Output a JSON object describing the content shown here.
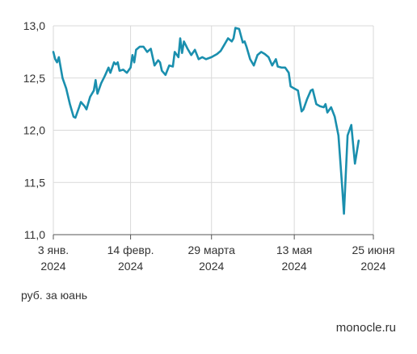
{
  "chart_data": {
    "type": "line",
    "ylim": [
      11.0,
      13.0
    ],
    "yticks": [
      {
        "value": 11.0,
        "label": "11,0"
      },
      {
        "value": 11.5,
        "label": "11,5"
      },
      {
        "value": 12.0,
        "label": "12,0"
      },
      {
        "value": 12.5,
        "label": "12,5"
      },
      {
        "value": 13.0,
        "label": "13,0"
      }
    ],
    "xlim": [
      "2024-01-03",
      "2024-06-25"
    ],
    "xticks": [
      {
        "date": "2024-01-03",
        "label": "3 янв.",
        "year": "2024"
      },
      {
        "date": "2024-02-14",
        "label": "14 февр.",
        "year": "2024"
      },
      {
        "date": "2024-03-29",
        "label": "29 марта",
        "year": "2024"
      },
      {
        "date": "2024-05-13",
        "label": "13 мая",
        "year": "2024"
      },
      {
        "date": "2024-06-25",
        "label": "25 июня",
        "year": "2024"
      }
    ],
    "grid": true,
    "line_color": "#1a8fae",
    "series": [
      {
        "points": [
          [
            "2024-01-03",
            12.75
          ],
          [
            "2024-01-04",
            12.68
          ],
          [
            "2024-01-05",
            12.65
          ],
          [
            "2024-01-06",
            12.7
          ],
          [
            "2024-01-08",
            12.5
          ],
          [
            "2024-01-10",
            12.4
          ],
          [
            "2024-01-12",
            12.25
          ],
          [
            "2024-01-14",
            12.13
          ],
          [
            "2024-01-15",
            12.12
          ],
          [
            "2024-01-17",
            12.22
          ],
          [
            "2024-01-18",
            12.27
          ],
          [
            "2024-01-20",
            12.23
          ],
          [
            "2024-01-21",
            12.2
          ],
          [
            "2024-01-23",
            12.32
          ],
          [
            "2024-01-25",
            12.38
          ],
          [
            "2024-01-26",
            12.48
          ],
          [
            "2024-01-27",
            12.35
          ],
          [
            "2024-01-29",
            12.45
          ],
          [
            "2024-01-31",
            12.52
          ],
          [
            "2024-02-02",
            12.6
          ],
          [
            "2024-02-03",
            12.55
          ],
          [
            "2024-02-05",
            12.65
          ],
          [
            "2024-02-06",
            12.63
          ],
          [
            "2024-02-07",
            12.65
          ],
          [
            "2024-02-08",
            12.57
          ],
          [
            "2024-02-10",
            12.58
          ],
          [
            "2024-02-12",
            12.55
          ],
          [
            "2024-02-14",
            12.6
          ],
          [
            "2024-02-15",
            12.72
          ],
          [
            "2024-02-16",
            12.65
          ],
          [
            "2024-02-17",
            12.77
          ],
          [
            "2024-02-19",
            12.8
          ],
          [
            "2024-02-21",
            12.8
          ],
          [
            "2024-02-23",
            12.75
          ],
          [
            "2024-02-25",
            12.78
          ],
          [
            "2024-02-27",
            12.62
          ],
          [
            "2024-02-29",
            12.67
          ],
          [
            "2024-03-01",
            12.65
          ],
          [
            "2024-03-02",
            12.57
          ],
          [
            "2024-03-04",
            12.53
          ],
          [
            "2024-03-06",
            12.62
          ],
          [
            "2024-03-08",
            12.61
          ],
          [
            "2024-03-09",
            12.75
          ],
          [
            "2024-03-11",
            12.7
          ],
          [
            "2024-03-12",
            12.88
          ],
          [
            "2024-03-13",
            12.74
          ],
          [
            "2024-03-14",
            12.85
          ],
          [
            "2024-03-16",
            12.78
          ],
          [
            "2024-03-18",
            12.72
          ],
          [
            "2024-03-20",
            12.77
          ],
          [
            "2024-03-22",
            12.68
          ],
          [
            "2024-03-24",
            12.7
          ],
          [
            "2024-03-26",
            12.68
          ],
          [
            "2024-03-29",
            12.7
          ],
          [
            "2024-04-01",
            12.73
          ],
          [
            "2024-04-03",
            12.76
          ],
          [
            "2024-04-05",
            12.82
          ],
          [
            "2024-04-07",
            12.88
          ],
          [
            "2024-04-09",
            12.85
          ],
          [
            "2024-04-10",
            12.88
          ],
          [
            "2024-04-11",
            12.98
          ],
          [
            "2024-04-13",
            12.97
          ],
          [
            "2024-04-15",
            12.84
          ],
          [
            "2024-04-16",
            12.85
          ],
          [
            "2024-04-17",
            12.8
          ],
          [
            "2024-04-19",
            12.68
          ],
          [
            "2024-04-21",
            12.62
          ],
          [
            "2024-04-23",
            12.72
          ],
          [
            "2024-04-25",
            12.75
          ],
          [
            "2024-04-27",
            12.73
          ],
          [
            "2024-04-29",
            12.7
          ],
          [
            "2024-05-01",
            12.62
          ],
          [
            "2024-05-03",
            12.68
          ],
          [
            "2024-05-04",
            12.61
          ],
          [
            "2024-05-06",
            12.6
          ],
          [
            "2024-05-08",
            12.6
          ],
          [
            "2024-05-10",
            12.55
          ],
          [
            "2024-05-11",
            12.42
          ],
          [
            "2024-05-13",
            12.4
          ],
          [
            "2024-05-15",
            12.38
          ],
          [
            "2024-05-17",
            12.18
          ],
          [
            "2024-05-18",
            12.2
          ],
          [
            "2024-05-20",
            12.3
          ],
          [
            "2024-05-22",
            12.38
          ],
          [
            "2024-05-23",
            12.39
          ],
          [
            "2024-05-25",
            12.25
          ],
          [
            "2024-05-27",
            12.23
          ],
          [
            "2024-05-29",
            12.22
          ],
          [
            "2024-05-30",
            12.25
          ],
          [
            "2024-05-31",
            12.17
          ],
          [
            "2024-06-02",
            12.22
          ],
          [
            "2024-06-04",
            12.13
          ],
          [
            "2024-06-06",
            11.95
          ],
          [
            "2024-06-08",
            11.47
          ],
          [
            "2024-06-09",
            11.2
          ],
          [
            "2024-06-11",
            11.95
          ],
          [
            "2024-06-13",
            12.05
          ],
          [
            "2024-06-15",
            11.68
          ],
          [
            "2024-06-17",
            11.9
          ]
        ]
      }
    ]
  },
  "unit_note": "руб. за юань",
  "source": "monocle.ru"
}
